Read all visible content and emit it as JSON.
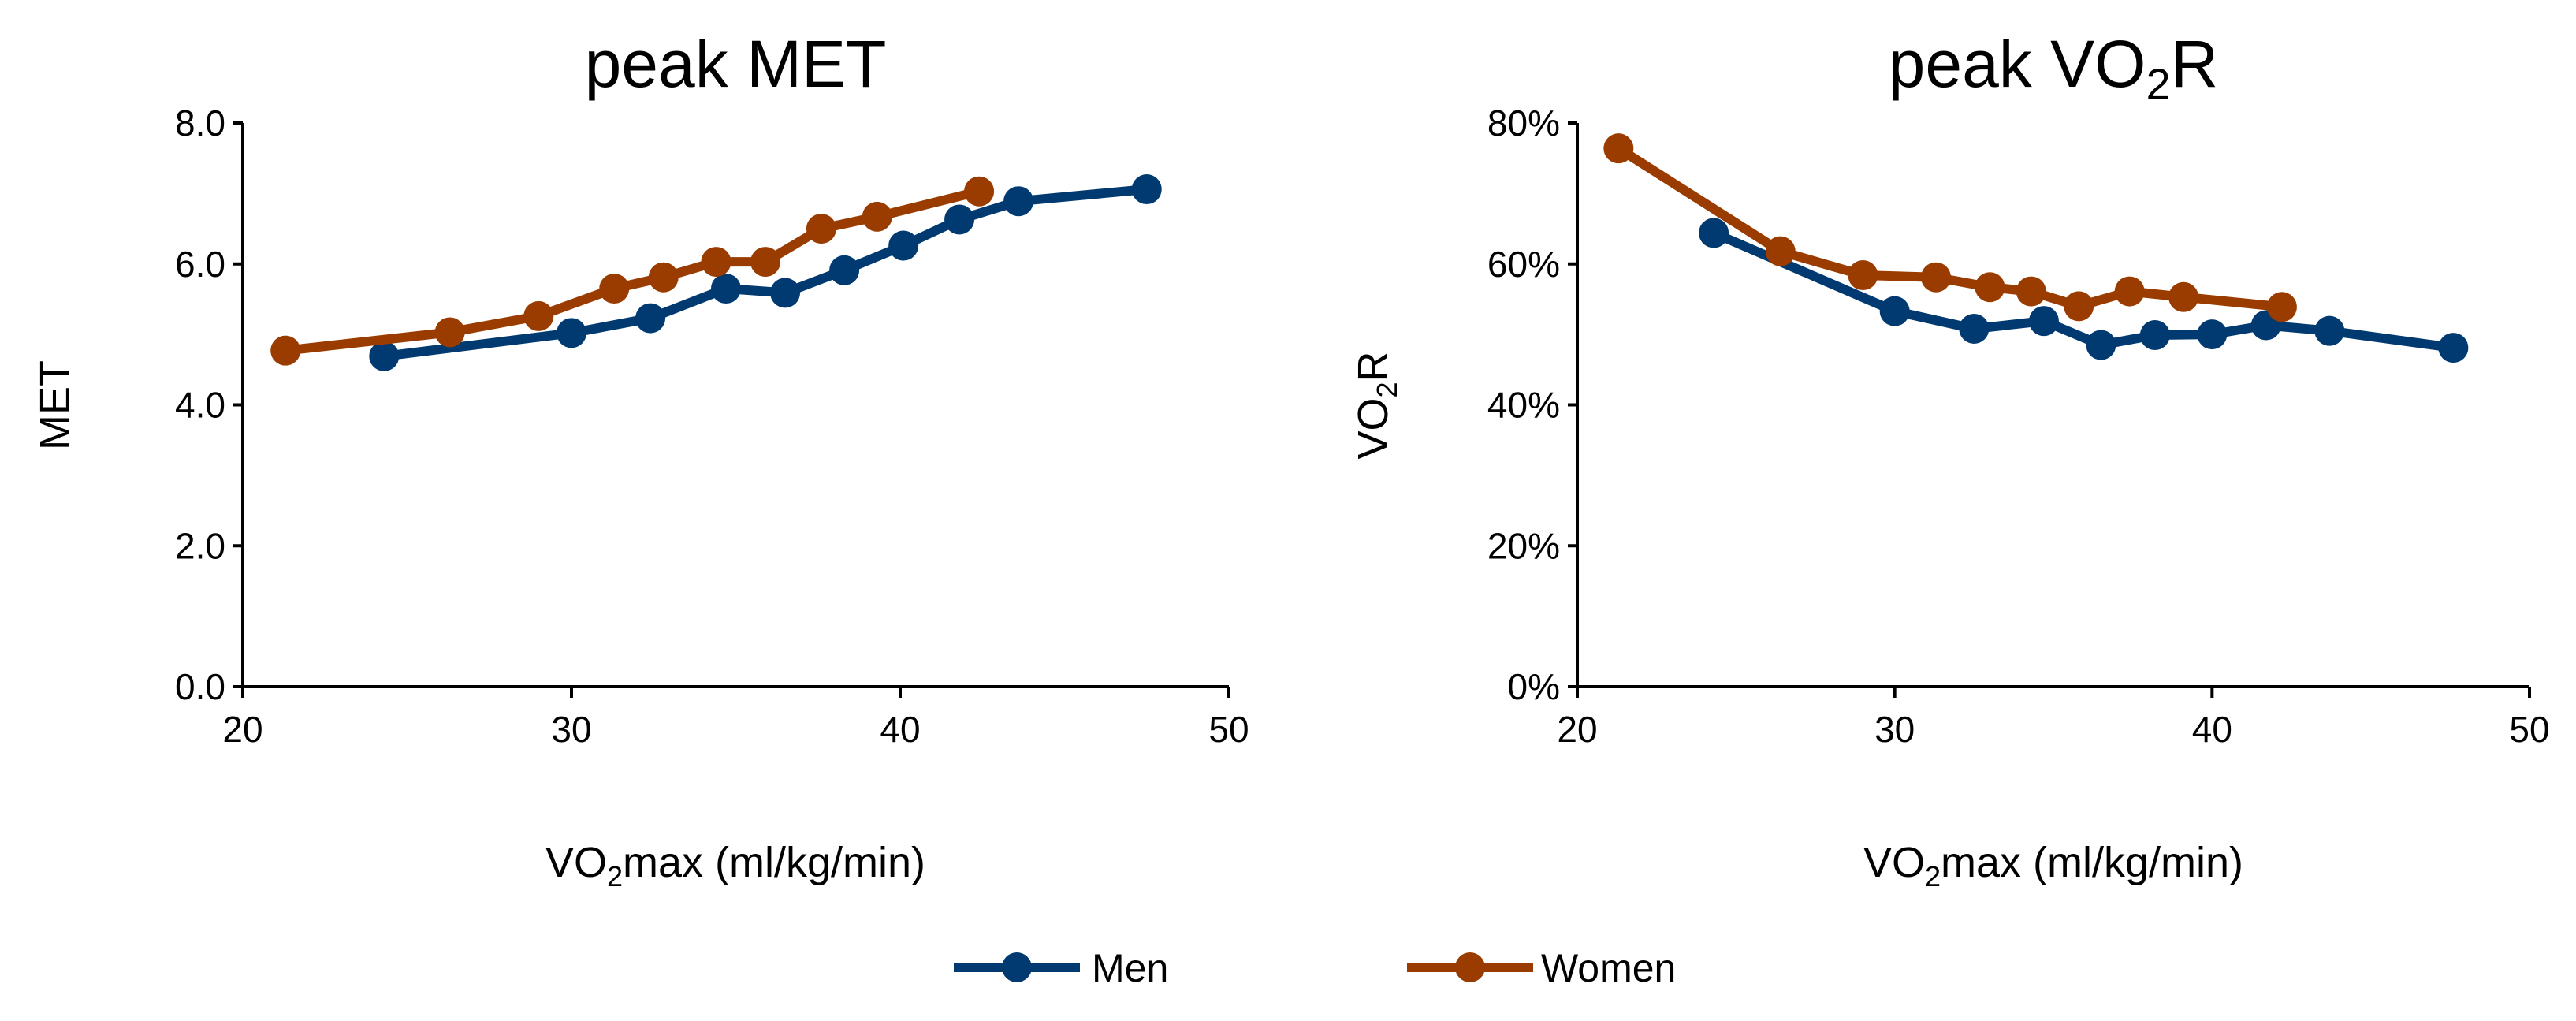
{
  "colors": {
    "men": "#003a70",
    "women": "#9a3b00",
    "axis": "#000000"
  },
  "legend": [
    {
      "label": "Men",
      "series": "men"
    },
    {
      "label": "Women",
      "series": "women"
    }
  ],
  "chart_data": [
    {
      "type": "line",
      "title": "peak MET",
      "xlabel": "VO2max (ml/kg/min)",
      "xlabel_parts": {
        "pre": "VO",
        "sub": "2",
        "post": "max (ml/kg/min)"
      },
      "ylabel": "MET",
      "xlim": [
        20,
        50
      ],
      "ylim": [
        0,
        8
      ],
      "xticks": [
        20,
        30,
        40,
        50
      ],
      "xtick_labels": [
        "20",
        "30",
        "40",
        "50"
      ],
      "yticks": [
        0,
        2,
        4,
        6,
        8
      ],
      "ytick_labels": [
        "0.0",
        "2.0",
        "4.0",
        "6.0",
        "8.0"
      ],
      "grid": false,
      "series": [
        {
          "name": "Men",
          "x": [
            24.3,
            30.0,
            32.4,
            34.7,
            36.5,
            38.3,
            40.1,
            41.8,
            43.6,
            47.5
          ],
          "y": [
            4.69,
            5.02,
            5.23,
            5.65,
            5.59,
            5.91,
            6.26,
            6.63,
            6.89,
            7.06
          ]
        },
        {
          "name": "Women",
          "x": [
            21.3,
            26.3,
            29.0,
            31.3,
            32.8,
            34.4,
            35.9,
            37.6,
            39.3,
            42.4
          ],
          "y": [
            4.77,
            5.03,
            5.26,
            5.65,
            5.81,
            6.03,
            6.03,
            6.5,
            6.67,
            7.03
          ]
        }
      ]
    },
    {
      "type": "line",
      "title": "peak VO2R",
      "title_parts": {
        "pre": "peak VO",
        "sub": "2",
        "post": "R"
      },
      "xlabel": "VO2max (ml/kg/min)",
      "xlabel_parts": {
        "pre": "VO",
        "sub": "2",
        "post": "max (ml/kg/min)"
      },
      "ylabel": "VO2R",
      "ylabel_parts": {
        "pre": "VO",
        "sub": "2",
        "post": "R"
      },
      "xlim": [
        20,
        50
      ],
      "ylim": [
        0,
        80
      ],
      "xticks": [
        20,
        30,
        40,
        50
      ],
      "xtick_labels": [
        "20",
        "30",
        "40",
        "50"
      ],
      "yticks": [
        0,
        20,
        40,
        60,
        80
      ],
      "ytick_labels": [
        "0%",
        "20%",
        "40%",
        "60%",
        "80%"
      ],
      "grid": false,
      "series": [
        {
          "name": "Men",
          "x": [
            24.3,
            30.0,
            32.5,
            34.7,
            36.5,
            38.2,
            40.0,
            41.7,
            43.7,
            47.6
          ],
          "y": [
            64.4,
            53.3,
            50.8,
            51.9,
            48.5,
            49.9,
            50.0,
            51.3,
            50.5,
            48.1
          ]
        },
        {
          "name": "Women",
          "x": [
            21.3,
            26.4,
            29.0,
            31.3,
            33.0,
            34.3,
            35.8,
            37.4,
            39.1,
            42.2
          ],
          "y": [
            76.4,
            61.8,
            58.4,
            58.1,
            56.7,
            56.1,
            54.0,
            56.1,
            55.3,
            53.9
          ]
        }
      ]
    }
  ]
}
